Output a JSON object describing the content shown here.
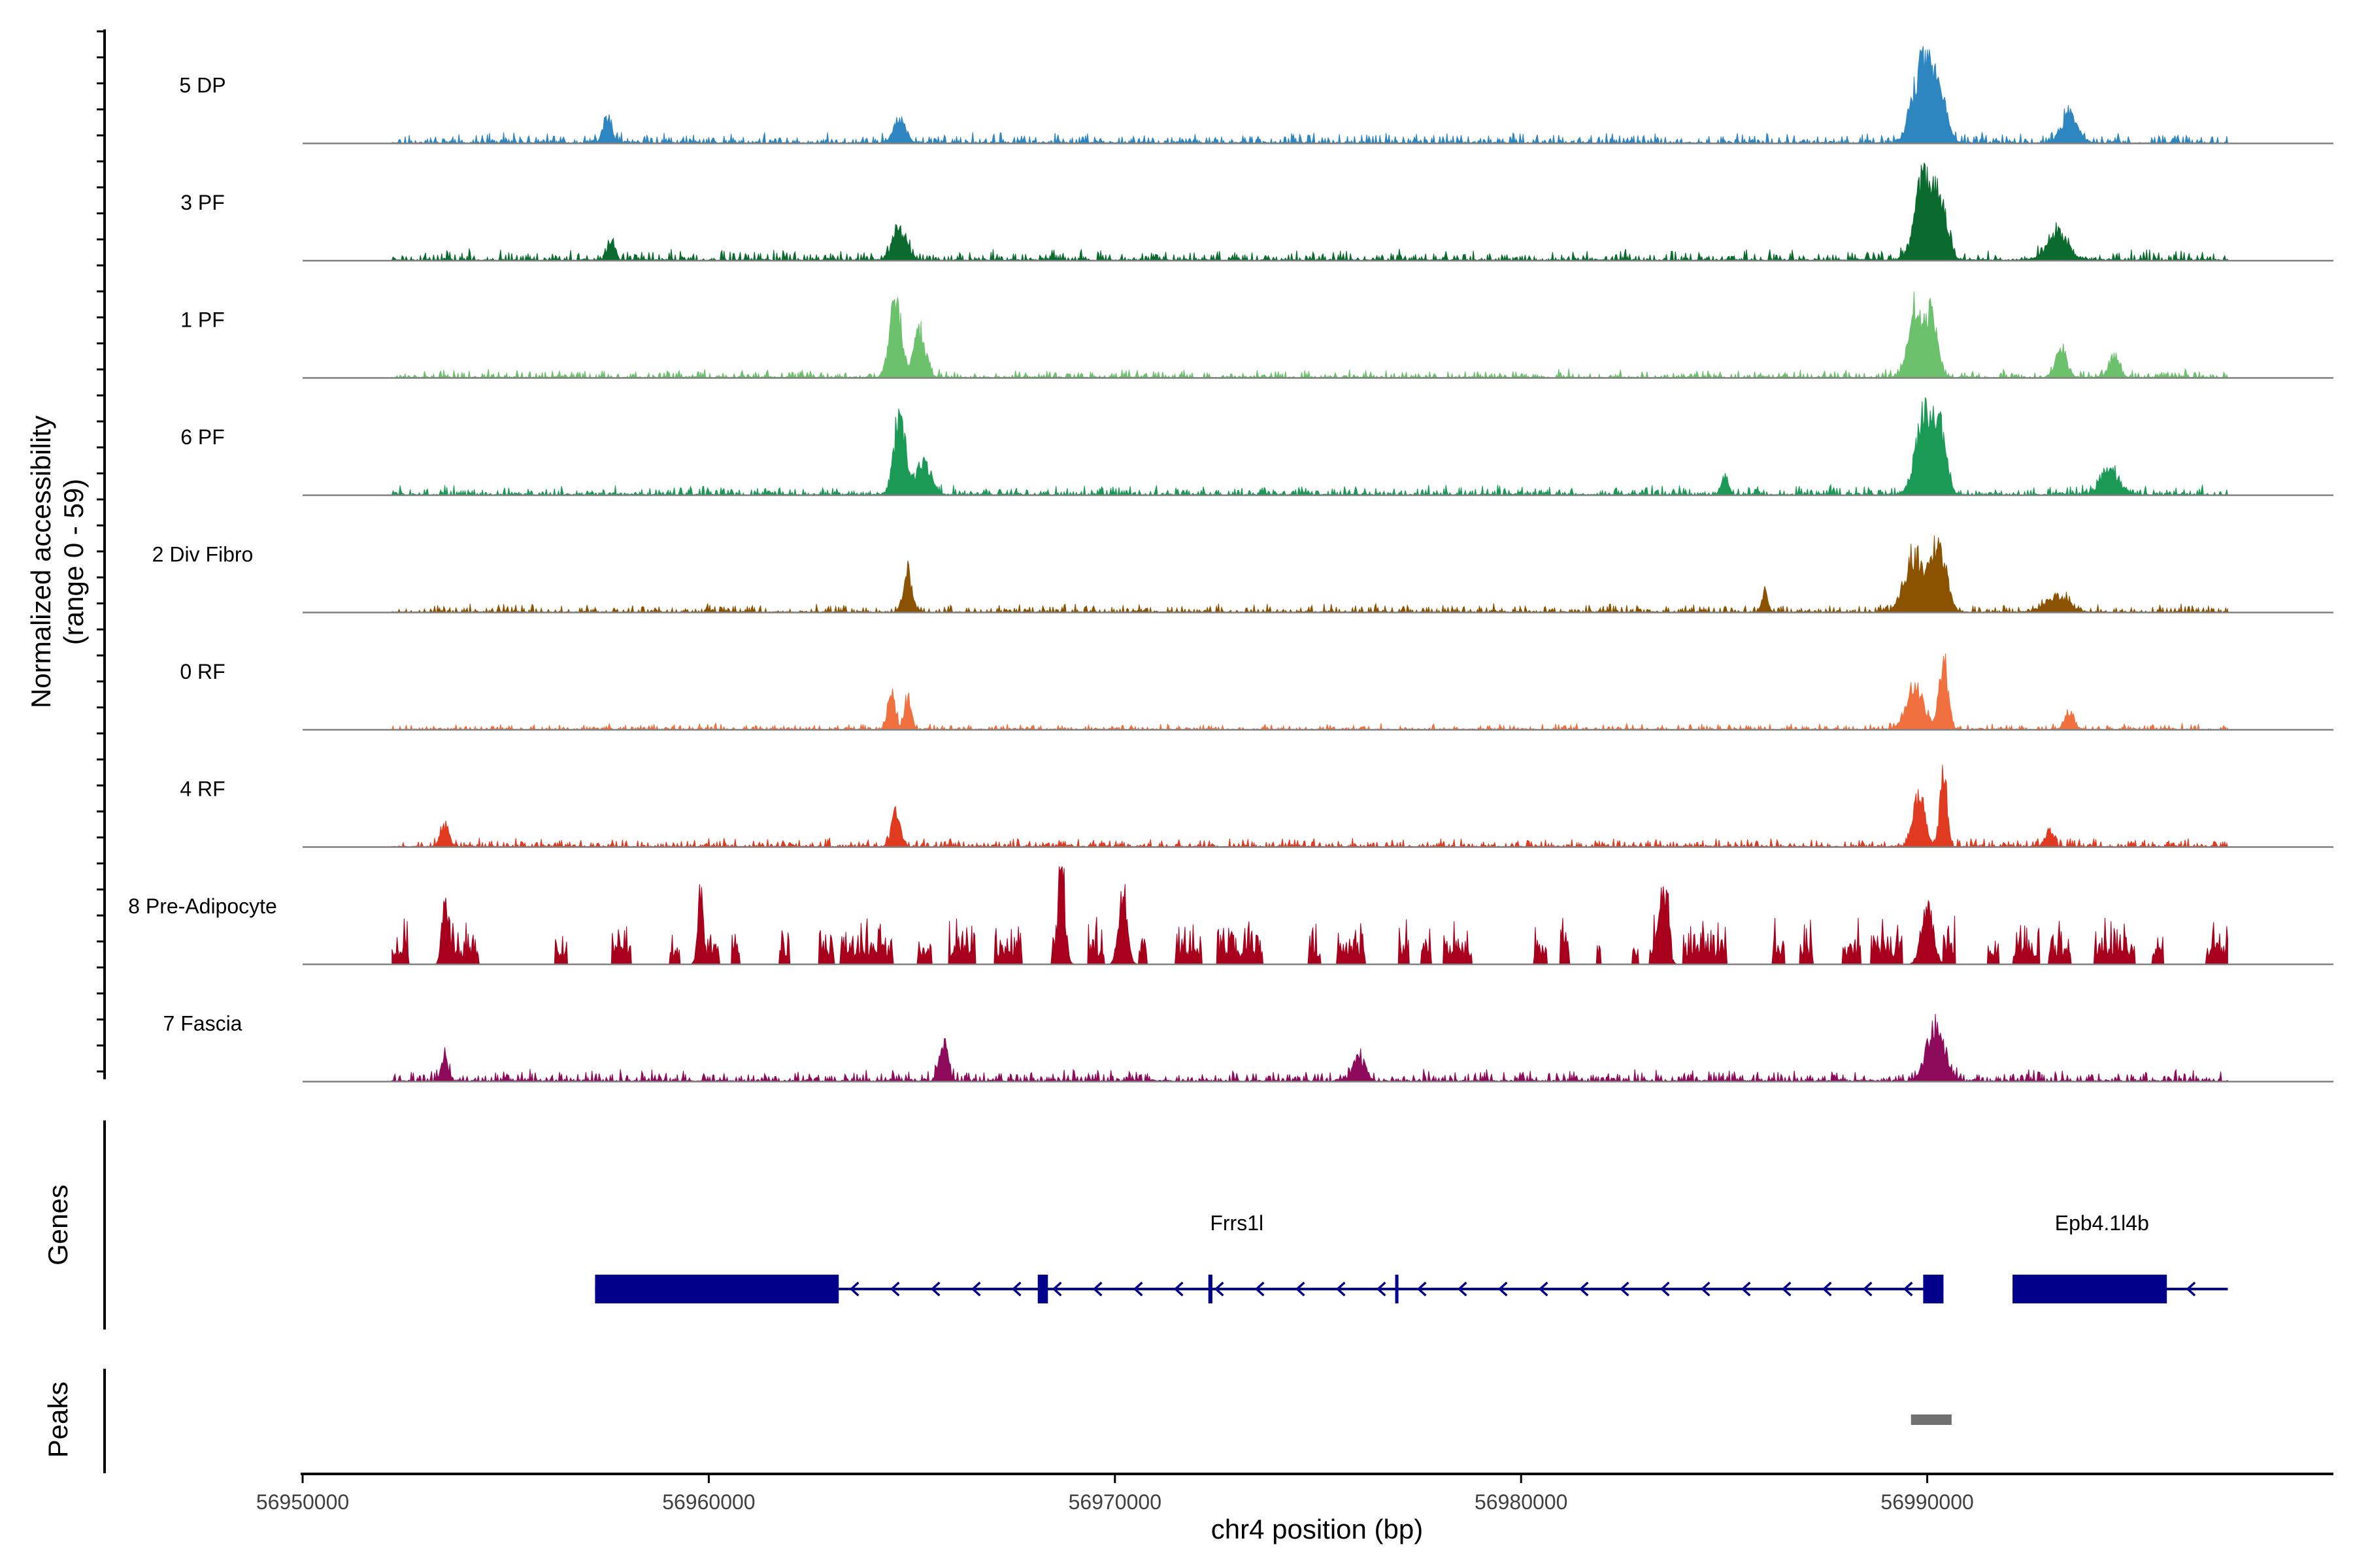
{
  "chart_data": {
    "type": "area",
    "description_axis": "genomic coverage track",
    "ylabel_line1": "Normalized accessibility",
    "ylabel_line2": "(range 0 - 59)",
    "yrange": [
      0,
      59
    ],
    "xlabel": "chr4 position (bp)",
    "xlim": [
      56950000,
      57000000
    ],
    "xticks": [
      {
        "value": 56950000,
        "label": "56950000"
      },
      {
        "value": 56960000,
        "label": "56960000"
      },
      {
        "value": 56970000,
        "label": "56970000"
      },
      {
        "value": 56980000,
        "label": "56980000"
      },
      {
        "value": 56990000,
        "label": "56990000"
      }
    ],
    "data_start": 56952200,
    "data_end": 56997400,
    "tracks": [
      {
        "name": "5 DP",
        "color": "#2e86c1",
        "baseline_noise": 0.12,
        "seed": 11,
        "peaks": [
          [
            56989900,
            350,
            1.0
          ],
          [
            56990300,
            250,
            0.55
          ],
          [
            56993500,
            300,
            0.35
          ],
          [
            56964700,
            200,
            0.3
          ],
          [
            56957500,
            150,
            0.3
          ]
        ]
      },
      {
        "name": "3 PF",
        "color": "#0b6b2e",
        "baseline_noise": 0.13,
        "seed": 23,
        "peaks": [
          [
            56989900,
            280,
            1.0
          ],
          [
            56990300,
            250,
            0.75
          ],
          [
            56993200,
            350,
            0.35
          ],
          [
            56964700,
            250,
            0.4
          ],
          [
            56957600,
            120,
            0.3
          ]
        ]
      },
      {
        "name": "1 PF",
        "color": "#6cc16c",
        "baseline_noise": 0.1,
        "seed": 37,
        "peaks": [
          [
            56964600,
            200,
            1.0
          ],
          [
            56965200,
            200,
            0.6
          ],
          [
            56989700,
            250,
            0.85
          ],
          [
            56990100,
            200,
            0.75
          ],
          [
            56993300,
            200,
            0.35
          ],
          [
            56994600,
            180,
            0.25
          ]
        ]
      },
      {
        "name": "6 PF",
        "color": "#1a9a55",
        "baseline_noise": 0.11,
        "seed": 51,
        "peaks": [
          [
            56964700,
            200,
            1.0
          ],
          [
            56965300,
            250,
            0.4
          ],
          [
            56989900,
            280,
            1.0
          ],
          [
            56990300,
            220,
            0.8
          ],
          [
            56994500,
            300,
            0.35
          ],
          [
            56985000,
            120,
            0.25
          ]
        ]
      },
      {
        "name": "2 Div Fibro",
        "color": "#8b5200",
        "baseline_noise": 0.1,
        "seed": 67,
        "peaks": [
          [
            56989700,
            350,
            0.7
          ],
          [
            56990300,
            250,
            0.85
          ],
          [
            56964900,
            150,
            0.5
          ],
          [
            56993200,
            400,
            0.2
          ],
          [
            56986000,
            100,
            0.25
          ]
        ]
      },
      {
        "name": "0 RF",
        "color": "#f07040",
        "baseline_noise": 0.07,
        "seed": 79,
        "peaks": [
          [
            56964500,
            120,
            0.55
          ],
          [
            56964900,
            120,
            0.4
          ],
          [
            56989700,
            300,
            0.55
          ],
          [
            56990400,
            150,
            0.9
          ],
          [
            56993500,
            150,
            0.25
          ]
        ]
      },
      {
        "name": "4 RF",
        "color": "#e03a20",
        "baseline_noise": 0.1,
        "seed": 97,
        "peaks": [
          [
            56964600,
            150,
            0.45
          ],
          [
            56989800,
            200,
            0.65
          ],
          [
            56990400,
            120,
            1.0
          ],
          [
            56953500,
            150,
            0.25
          ],
          [
            56993000,
            150,
            0.2
          ]
        ]
      },
      {
        "name": "8 Pre-Adipocyte",
        "color": "#a8001c",
        "baseline_noise": 0.55,
        "sparse": true,
        "seed": 113,
        "peaks": [
          [
            56968700,
            120,
            1.0
          ],
          [
            56970200,
            150,
            0.95
          ],
          [
            56953500,
            100,
            0.9
          ],
          [
            56959800,
            100,
            0.9
          ],
          [
            56983500,
            150,
            0.8
          ],
          [
            56990000,
            200,
            0.75
          ]
        ]
      },
      {
        "name": "7 Fascia",
        "color": "#8e0a5a",
        "baseline_noise": 0.14,
        "seed": 131,
        "peaks": [
          [
            56990200,
            300,
            0.7
          ],
          [
            56965800,
            150,
            0.45
          ],
          [
            56953500,
            120,
            0.3
          ],
          [
            56976000,
            200,
            0.3
          ]
        ]
      }
    ],
    "genes_label": "Genes",
    "peaks_label": "Peaks",
    "genes": [
      {
        "name": "Frrs1l",
        "label_pos": 56973000,
        "strand": "-",
        "start": 56957200,
        "end": 56990400,
        "exons": [
          [
            56957200,
            56963200
          ],
          [
            56968100,
            56968350
          ],
          [
            56972300,
            56972400
          ],
          [
            56976900,
            56976950
          ],
          [
            56989900,
            56990400
          ]
        ],
        "color": "#00008b"
      },
      {
        "name": "Epb4.1l4b",
        "label_pos": 56994300,
        "strand": "-",
        "start": 56992100,
        "end": 56997400,
        "exons": [
          [
            56992100,
            56995900
          ]
        ],
        "color": "#00008b"
      }
    ],
    "peak_regions": [
      {
        "start": 56989600,
        "end": 56990600,
        "color": "#707070"
      }
    ]
  }
}
